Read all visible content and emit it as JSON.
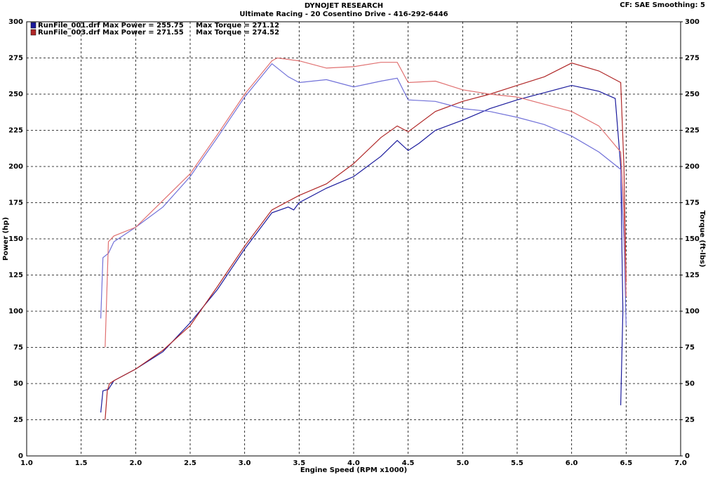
{
  "chart_data": {
    "type": "line",
    "title": "DYNOJET RESEARCH",
    "subtitle": "Ultimate Racing - 20 Cosentino Drive - 416-292-6446",
    "corner_note": "CF: SAE  Smoothing: 5",
    "x_label": "Engine Speed (RPM x1000)",
    "y_label": "Power (hp)",
    "y2_label": "Torque (ft-lbs)",
    "xlim": [
      1.0,
      7.0
    ],
    "xticks": [
      {
        "value": 1.0,
        "label": "1.0"
      },
      {
        "value": 1.5,
        "label": "1.5"
      },
      {
        "value": 2.0,
        "label": "2.0"
      },
      {
        "value": 2.5,
        "label": "2.5"
      },
      {
        "value": 3.0,
        "label": "3.0"
      },
      {
        "value": 3.5,
        "label": "3.5"
      },
      {
        "value": 4.0,
        "label": "4.0"
      },
      {
        "value": 4.5,
        "label": "4.5"
      },
      {
        "value": 5.0,
        "label": "5.0"
      },
      {
        "value": 5.5,
        "label": "5.5"
      },
      {
        "value": 6.0,
        "label": "6.0"
      },
      {
        "value": 6.5,
        "label": "6.5"
      },
      {
        "value": 7.0,
        "label": "7.0"
      }
    ],
    "ylim": [
      0,
      300
    ],
    "yticks": [
      0,
      25,
      50,
      75,
      100,
      125,
      150,
      175,
      200,
      225,
      250,
      275,
      300
    ],
    "y2lim": [
      0,
      300
    ],
    "y2ticks": [
      0,
      25,
      50,
      75,
      100,
      125,
      150,
      175,
      200,
      225,
      250,
      275,
      300
    ],
    "grid": true,
    "legend_position": "top-left",
    "series": [
      {
        "name": "RunFile_001.drf Max Power = 255.75     Max Torque = 271.12",
        "color": "#1a1a9c",
        "x": [
          1.68,
          1.7,
          1.75,
          1.8,
          2.0,
          2.25,
          2.5,
          2.75,
          3.0,
          3.25,
          3.4,
          3.45,
          3.5,
          3.75,
          4.0,
          4.25,
          4.4,
          4.5,
          4.6,
          4.75,
          5.0,
          5.25,
          5.5,
          5.75,
          6.0,
          6.25,
          6.4,
          6.45,
          6.47,
          6.45
        ],
        "values": [
          30,
          45,
          46,
          52,
          60,
          72,
          92,
          115,
          143,
          168,
          172,
          170,
          175,
          185,
          193,
          207,
          218,
          211,
          216,
          225,
          232,
          240,
          246,
          251,
          256,
          252,
          247,
          200,
          100,
          35
        ]
      },
      {
        "name": "RunFile_003.drf Max Power = 271.55     Max Torque = 274.52",
        "color": "#b02828",
        "x": [
          1.72,
          1.74,
          1.76,
          1.8,
          2.0,
          2.25,
          2.5,
          2.75,
          3.0,
          3.25,
          3.5,
          3.75,
          4.0,
          4.25,
          4.4,
          4.5,
          4.75,
          5.0,
          5.25,
          5.5,
          5.75,
          6.0,
          6.25,
          6.45,
          6.48,
          6.5
        ],
        "values": [
          25,
          45,
          50,
          52,
          60,
          73,
          90,
          117,
          145,
          170,
          180,
          188,
          202,
          220,
          228,
          224,
          238,
          245,
          250,
          256,
          262,
          271.5,
          266,
          258,
          200,
          120
        ]
      },
      {
        "axis": "y2",
        "color": "#7070d8",
        "x": [
          1.68,
          1.7,
          1.75,
          1.8,
          2.0,
          2.25,
          2.5,
          2.75,
          3.0,
          3.25,
          3.4,
          3.5,
          3.75,
          4.0,
          4.25,
          4.4,
          4.5,
          4.75,
          5.0,
          5.25,
          5.5,
          5.75,
          6.0,
          6.25,
          6.45,
          6.48,
          6.5
        ],
        "values": [
          95,
          137,
          140,
          148,
          158,
          172,
          193,
          220,
          248,
          271,
          262,
          258,
          260,
          255,
          259,
          261,
          246,
          245,
          240,
          238,
          234,
          229,
          221,
          210,
          198,
          150,
          90
        ]
      },
      {
        "axis": "y2",
        "color": "#e07070",
        "x": [
          1.72,
          1.75,
          1.8,
          2.0,
          2.5,
          2.75,
          3.0,
          3.25,
          3.3,
          3.5,
          3.75,
          4.0,
          4.25,
          4.4,
          4.5,
          4.75,
          5.0,
          5.25,
          5.5,
          5.75,
          6.0,
          6.25,
          6.45,
          6.48,
          6.5
        ],
        "values": [
          75,
          148,
          152,
          158,
          195,
          222,
          250,
          273,
          275,
          273,
          268,
          269,
          272,
          272,
          258,
          259,
          253,
          250,
          248,
          243,
          238,
          228,
          210,
          170,
          110
        ]
      }
    ]
  }
}
